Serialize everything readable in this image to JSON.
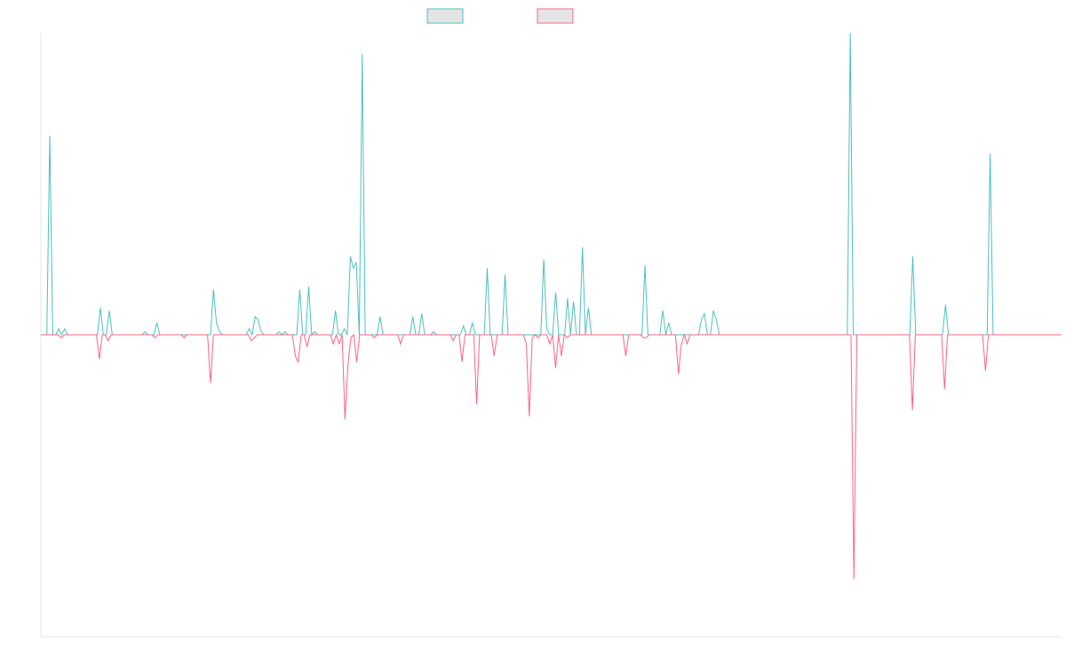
{
  "chart_data": {
    "type": "line",
    "title": "",
    "xlabel": "",
    "ylabel": "",
    "grid": false,
    "legend_position": "top-center",
    "ylim": [
      -1,
      1
    ],
    "series": [
      {
        "name": "",
        "color": "#4bc0c0",
        "fill": "#e5e5e5",
        "values": [
          0,
          0,
          0,
          0.66,
          0,
          0,
          0.02,
          0,
          0.02,
          0,
          0,
          0,
          0,
          0,
          0,
          0,
          0,
          0,
          0,
          0,
          0.09,
          0,
          0,
          0.08,
          0,
          0,
          0,
          0,
          0,
          0,
          0,
          0,
          0,
          0,
          0,
          0.01,
          0,
          0,
          0,
          0.04,
          0,
          0,
          0,
          0,
          0,
          0,
          0,
          0,
          0,
          0,
          0,
          0,
          0,
          0,
          0,
          0,
          0,
          0,
          0.15,
          0.04,
          0.01,
          0,
          0,
          0,
          0,
          0,
          0,
          0,
          0,
          0,
          0.02,
          0,
          0.06,
          0.05,
          0.01,
          0,
          0,
          0,
          0,
          0,
          0.01,
          0,
          0.01,
          0,
          0,
          0,
          0,
          0.15,
          0,
          0,
          0.16,
          0,
          0.01,
          0,
          0,
          0,
          0,
          0,
          0,
          0.08,
          0,
          0,
          0.02,
          0,
          0.26,
          0.22,
          0.24,
          0,
          0.93,
          0,
          0,
          0,
          0,
          0,
          0.06,
          0,
          0,
          0,
          0,
          0,
          0,
          0,
          0,
          0,
          0,
          0.06,
          0,
          0,
          0.07,
          0,
          0,
          0,
          0.01,
          0,
          0,
          0,
          0,
          0,
          0,
          0,
          0,
          0,
          0.03,
          0,
          0,
          0.04,
          0,
          0,
          0,
          0,
          0.22,
          0,
          0,
          0,
          0,
          0,
          0.2,
          0,
          0,
          0,
          0,
          0,
          0,
          0,
          0,
          0,
          0,
          0,
          0,
          0.25,
          0.02,
          0,
          0,
          0.14,
          0,
          0,
          0,
          0.12,
          0,
          0.11,
          0,
          0,
          0.29,
          0,
          0.09,
          0,
          0,
          0,
          0,
          0,
          0,
          0,
          0,
          0,
          0,
          0,
          0,
          0,
          0,
          0,
          0,
          0,
          0,
          0.23,
          0,
          0,
          0,
          0,
          0,
          0.08,
          0,
          0.04,
          0,
          0,
          0,
          0,
          0,
          0,
          0,
          0,
          0,
          0,
          0.05,
          0.07,
          0,
          0,
          0.08,
          0.05,
          0,
          0,
          0,
          0,
          0,
          0,
          0,
          0,
          0,
          0,
          0,
          0,
          0,
          0,
          0,
          0,
          0,
          0,
          0,
          0,
          0,
          0,
          0,
          0,
          0,
          0,
          0,
          0,
          0,
          0,
          0,
          0,
          0,
          0,
          0,
          0,
          0,
          0,
          0,
          0,
          0,
          0,
          0,
          0,
          1,
          0,
          0,
          0,
          0,
          0,
          0,
          0,
          0,
          0,
          0,
          0,
          0,
          0,
          0,
          0,
          0,
          0,
          0,
          0,
          0,
          0.26,
          0,
          0,
          0,
          0,
          0,
          0,
          0,
          0,
          0,
          0,
          0.1,
          0,
          0,
          0,
          0,
          0,
          0,
          0,
          0,
          0,
          0,
          0,
          0,
          0,
          0,
          0.6,
          0,
          0,
          0,
          0,
          0,
          0,
          0,
          0,
          0,
          0,
          0,
          0,
          0,
          0,
          0,
          0,
          0,
          0,
          0,
          0,
          0,
          0,
          0,
          0
        ]
      },
      {
        "name": "",
        "color": "#ff6384",
        "fill": "#e5e5e5",
        "values": [
          0,
          0,
          0,
          0,
          0,
          0,
          0,
          -0.01,
          0,
          0,
          0,
          0,
          0,
          0,
          0,
          0,
          0,
          0,
          0,
          0,
          -0.08,
          0,
          0,
          -0.02,
          0,
          0,
          0,
          0,
          0,
          0,
          0,
          0,
          0,
          0,
          0,
          0,
          0,
          0,
          0,
          -0.01,
          0,
          0,
          0,
          0,
          0,
          0,
          0,
          0,
          0,
          -0.01,
          0,
          0,
          0,
          0,
          0,
          0,
          0,
          0,
          -0.16,
          0,
          0,
          0,
          0,
          0,
          0,
          0,
          0,
          0,
          0,
          0,
          0,
          0,
          -0.02,
          -0.01,
          0,
          0,
          0,
          0,
          0,
          0,
          0,
          0,
          0,
          0,
          0,
          0,
          0,
          -0.07,
          -0.09,
          0,
          0,
          -0.04,
          0,
          0,
          0,
          0,
          0,
          0,
          0,
          0,
          -0.03,
          0,
          -0.03,
          0,
          -0.28,
          -0.1,
          -0.01,
          0,
          -0.09,
          0,
          0,
          0,
          0,
          0,
          -0.01,
          0,
          0,
          0,
          0,
          0,
          0,
          0,
          0,
          -0.03,
          0,
          0,
          0,
          0,
          0,
          0,
          0,
          0,
          0,
          0,
          0,
          0,
          0,
          0,
          0,
          0,
          0,
          -0.02,
          0,
          0,
          -0.09,
          0,
          0,
          0,
          0,
          -0.23,
          0,
          0,
          0,
          0,
          0,
          -0.07,
          0,
          0,
          0,
          0,
          0,
          0,
          0,
          0,
          0,
          0,
          -0.03,
          -0.27,
          -0.01,
          0,
          -0.01,
          0,
          0,
          0,
          -0.03,
          0,
          -0.11,
          0,
          -0.07,
          0,
          -0.01,
          0,
          0,
          0,
          0,
          0,
          0,
          0,
          0,
          0,
          0,
          0,
          0,
          0,
          0,
          0,
          0,
          0,
          0,
          0,
          -0.07,
          0,
          0,
          0,
          0,
          0,
          -0.01,
          -0.01,
          0,
          0,
          0,
          0,
          0,
          0,
          0,
          0,
          0,
          0,
          -0.13,
          -0.03,
          0,
          -0.03,
          0,
          0,
          0,
          0,
          0,
          0,
          0,
          0,
          0,
          0,
          0,
          0,
          0,
          0,
          0,
          0,
          0,
          0,
          0,
          0,
          0,
          0,
          0,
          0,
          0,
          0,
          0,
          0,
          0,
          0,
          0,
          0,
          0,
          0,
          0,
          0,
          0,
          0,
          0,
          0,
          0,
          0,
          0,
          0,
          0,
          0,
          0,
          0,
          0,
          0,
          0,
          0,
          0,
          0,
          0,
          0,
          -0.81,
          0,
          0,
          0,
          0,
          0,
          0,
          0,
          0,
          0,
          0,
          0,
          0,
          0,
          0,
          0,
          0,
          0,
          0,
          0,
          -0.25,
          0,
          0,
          0,
          0,
          0,
          0,
          0,
          0,
          0,
          0,
          -0.18,
          0,
          0,
          0,
          0,
          0,
          0,
          0,
          0,
          0,
          0,
          0,
          0,
          0,
          -0.12,
          0,
          0,
          0,
          0,
          0,
          0,
          0,
          0,
          0,
          0,
          0,
          0,
          0,
          0,
          0,
          0,
          0,
          0,
          0,
          0,
          0,
          0,
          0,
          0,
          0,
          0
        ]
      }
    ]
  }
}
